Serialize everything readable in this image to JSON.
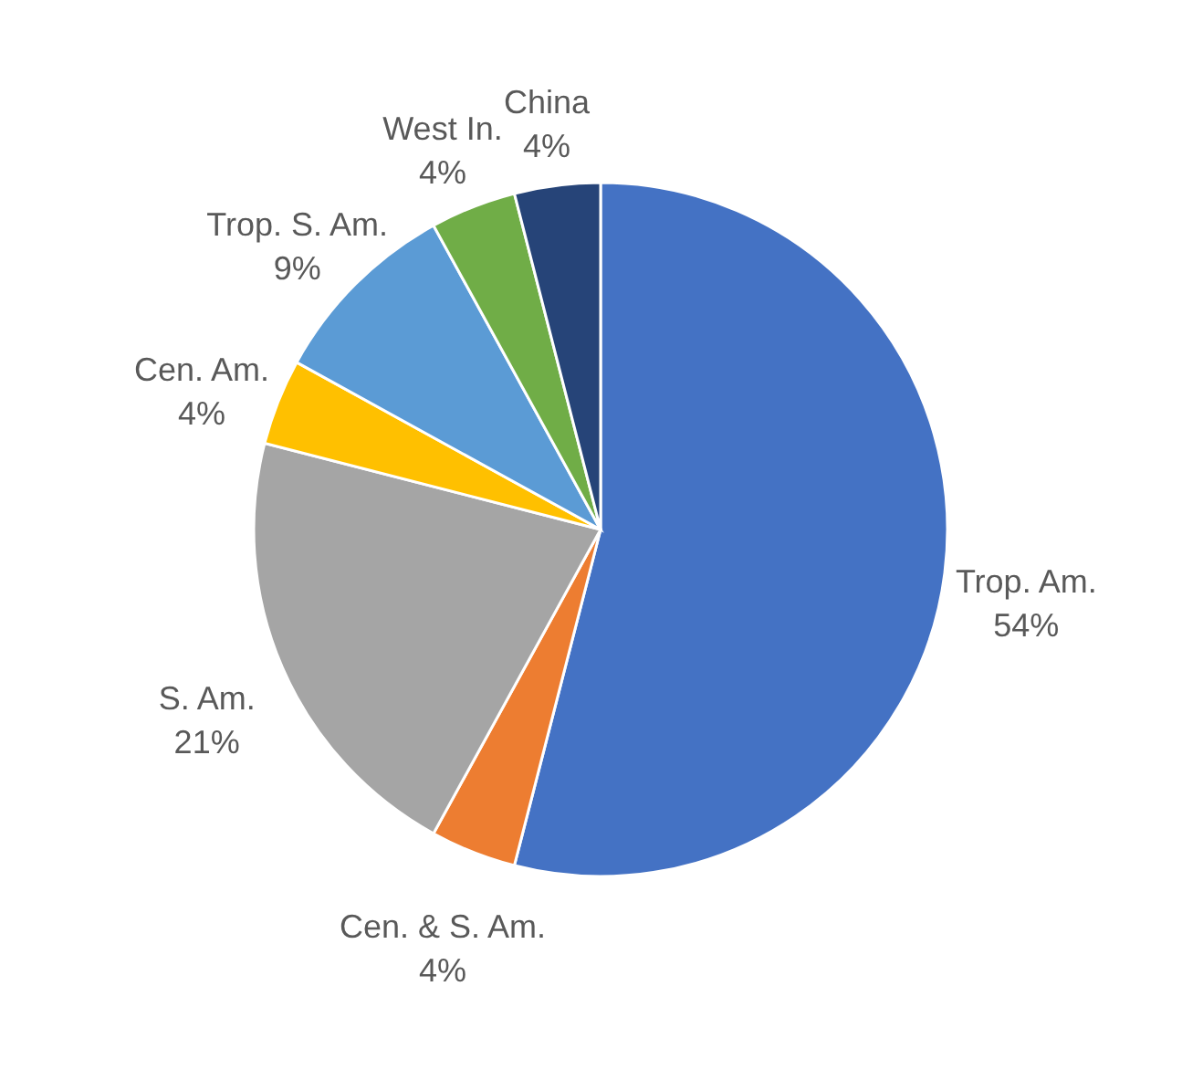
{
  "chart_data": {
    "type": "pie",
    "categories": [
      "Trop. Am.",
      "Cen. & S. Am.",
      "S. Am.",
      "Cen. Am.",
      "Trop. S. Am.",
      "West In.",
      "China"
    ],
    "values": [
      54,
      4,
      21,
      4,
      9,
      4,
      4
    ],
    "colors": [
      "#4472c4",
      "#ed7d31",
      "#a5a5a5",
      "#ffc000",
      "#5b9bd5",
      "#70ad47",
      "#264478"
    ],
    "value_labels": [
      "54%",
      "4%",
      "21%",
      "4%",
      "9%",
      "4%",
      "4%"
    ]
  }
}
